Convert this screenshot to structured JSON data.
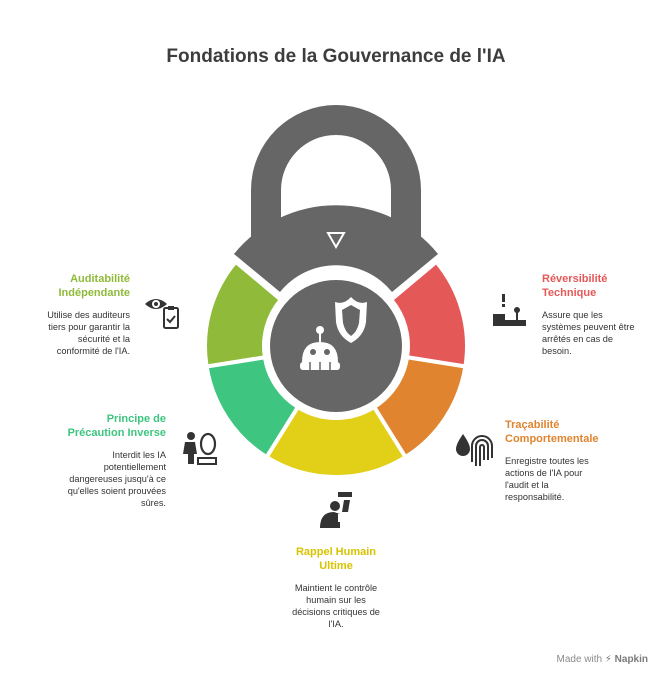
{
  "title": "Fondations de la Gouvernance de l'IA",
  "colors": {
    "lock": "#666666",
    "auditabilite": "#8fba3a",
    "precaution": "#3ec580",
    "rappel": "#e2cf17",
    "tracabilite": "#e0842f",
    "reversibilite": "#e55858"
  },
  "sections": {
    "auditabilite": {
      "title_line1": "Auditabilité",
      "title_line2": "Indépendante",
      "desc_lines": [
        "Utilise des auditeurs",
        "tiers pour garantir la",
        "sécurité et la",
        "conformité de l'IA."
      ],
      "icon": "eye-clipboard-icon"
    },
    "reversibilite": {
      "title_line1": "Réversibilité",
      "title_line2": "Technique",
      "desc_lines": [
        "Assure que les",
        "systèmes peuvent être",
        "arrêtés en cas de",
        "besoin."
      ],
      "icon": "kill-switch-icon"
    },
    "precaution": {
      "title_line1": "Principe de",
      "title_line2": "Précaution Inverse",
      "desc_lines": [
        "Interdit les IA",
        "potentiellement",
        "dangereuses jusqu'à ce",
        "qu'elles soient prouvées",
        "sûres."
      ],
      "icon": "person-egg-icon"
    },
    "tracabilite": {
      "title_line1": "Traçabilité",
      "title_line2": "Comportementale",
      "desc_lines": [
        "Enregistre toutes les",
        "actions de l'IA pour",
        "l'audit et la",
        "responsabilité."
      ],
      "icon": "drop-fingerprint-icon"
    },
    "rappel": {
      "title_line1": "Rappel Humain",
      "title_line2": "Ultime",
      "desc_lines": [
        "Maintient le contrôle",
        "humain sur les",
        "décisions critiques de",
        "l'IA."
      ],
      "icon": "person-phone-icon"
    }
  },
  "footer": {
    "made_with": "Made with",
    "brand": "Napkin"
  }
}
